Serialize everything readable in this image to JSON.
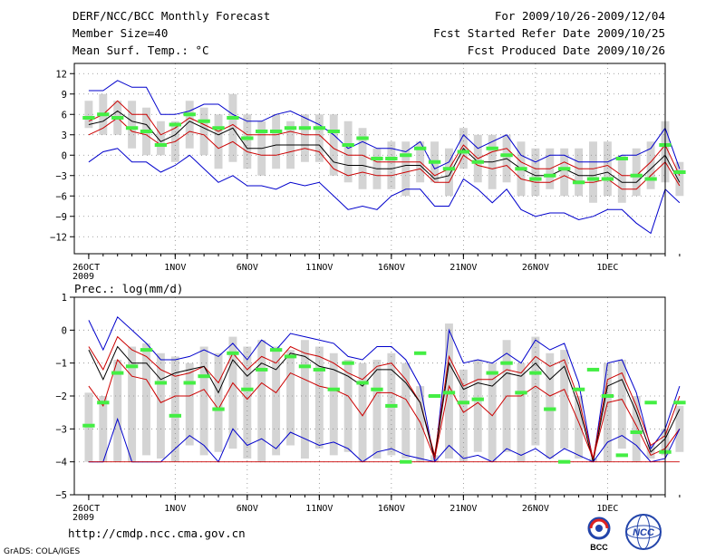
{
  "header": {
    "title": "DERF/NCC/BCC Monthly Forecast",
    "member_size": "Member Size=40",
    "variable": "Mean Surf. Temp.: °C",
    "period": "For 2009/10/26-2009/12/04",
    "refer_date": "Fcst Started Refer Date 2009/10/25",
    "produced_date": "Fcst Produced Date 2009/10/26"
  },
  "footer": {
    "url": "http://cmdp.ncc.cma.gov.cn",
    "credit": "GrADS: COLA/IGES",
    "logo_left": "BCC",
    "logo_right": "NCC"
  },
  "colors": {
    "mean": "#000000",
    "spread": "#cc0000",
    "extreme": "#0000cc",
    "box": "#d4d4d4",
    "climatology": "#44ee44",
    "grid": "#888888"
  },
  "chart_data": [
    {
      "type": "line",
      "title": "Mean Surf. Temp.: °C",
      "ylim": [
        -14.5,
        13.5
      ],
      "yticks": [
        12,
        9,
        6,
        3,
        0,
        -3,
        -6,
        -9,
        -12
      ],
      "xlim": [
        -1,
        40
      ],
      "xticks": [
        {
          "i": 0,
          "label": "26OCT",
          "sub": "2009"
        },
        {
          "i": 6,
          "label": "1NOV"
        },
        {
          "i": 11,
          "label": "6NOV"
        },
        {
          "i": 16,
          "label": "11NOV"
        },
        {
          "i": 21,
          "label": "16NOV"
        },
        {
          "i": 26,
          "label": "21NOV"
        },
        {
          "i": 31,
          "label": "26NOV"
        },
        {
          "i": 36,
          "label": "1DEC"
        }
      ],
      "series": [
        {
          "name": "max",
          "color": "extreme",
          "values": [
            9.5,
            9.5,
            11,
            10,
            10,
            6,
            6,
            6.5,
            7.5,
            7.5,
            6,
            5,
            5,
            6,
            6.5,
            5.5,
            4.5,
            3,
            1,
            2,
            1,
            1,
            0.5,
            2,
            -2,
            -1,
            3,
            1,
            2,
            3,
            0,
            -1,
            0,
            0,
            -1,
            -1,
            -1,
            0,
            0,
            1,
            4,
            -2
          ]
        },
        {
          "name": "upper",
          "color": "spread",
          "values": [
            5,
            6,
            8,
            6,
            6,
            3,
            4,
            5.5,
            4.5,
            3.5,
            4.5,
            3,
            3,
            3,
            3.5,
            3,
            3,
            1,
            0,
            0,
            -1,
            -1,
            -1,
            -1,
            -3,
            -2,
            1.5,
            -0.5,
            0.5,
            1,
            -1,
            -2,
            -2,
            -1,
            -2,
            -2,
            -1.5,
            -3,
            -3,
            -1,
            1.5,
            -3
          ]
        },
        {
          "name": "mean",
          "color": "mean",
          "values": [
            4.5,
            5,
            6.5,
            5,
            4.5,
            2,
            3,
            5,
            4,
            3,
            4,
            1,
            1,
            1.5,
            1.5,
            1.5,
            1.5,
            -1,
            -1.5,
            -1.5,
            -2,
            -2,
            -1.5,
            -1.5,
            -3.5,
            -3,
            1,
            -1,
            -1,
            -0.5,
            -2,
            -3,
            -3,
            -2,
            -3,
            -3,
            -2.5,
            -4,
            -4,
            -2,
            0,
            -4
          ]
        },
        {
          "name": "lower",
          "color": "spread",
          "values": [
            3,
            4,
            5.5,
            3.5,
            3,
            1.5,
            2,
            3.5,
            3,
            1,
            2,
            0.5,
            0,
            0,
            0.5,
            1,
            0.5,
            -2,
            -3,
            -2.5,
            -3,
            -3,
            -2.5,
            -2,
            -4,
            -4,
            0,
            -1.5,
            -2,
            -1.5,
            -3.5,
            -4,
            -4,
            -3,
            -4,
            -4,
            -3.5,
            -5,
            -5,
            -3,
            -1,
            -4.5
          ]
        },
        {
          "name": "min",
          "color": "extreme",
          "values": [
            -1,
            0.5,
            1,
            -1,
            -1,
            -2.5,
            -1.5,
            0,
            -2,
            -4,
            -3,
            -4.5,
            -4.5,
            -5,
            -4,
            -4.5,
            -4,
            -6,
            -8,
            -7.5,
            -8,
            -6,
            -5,
            -5,
            -7.5,
            -7.5,
            -3.5,
            -5,
            -7,
            -5,
            -8,
            -9,
            -8.5,
            -8.5,
            -9.5,
            -9,
            -8,
            -8,
            -10,
            -11.5,
            -5,
            -7
          ]
        }
      ],
      "boxes": [
        [
          4,
          8
        ],
        [
          3,
          9
        ],
        [
          3,
          8
        ],
        [
          1,
          8
        ],
        [
          0,
          7
        ],
        [
          0,
          5
        ],
        [
          -1,
          5
        ],
        [
          1,
          8
        ],
        [
          0,
          7
        ],
        [
          -2,
          6
        ],
        [
          -1,
          9
        ],
        [
          -2,
          6
        ],
        [
          -3,
          5
        ],
        [
          -2,
          6
        ],
        [
          -2,
          5
        ],
        [
          -1,
          6
        ],
        [
          -1,
          6
        ],
        [
          -3,
          6
        ],
        [
          -4,
          5
        ],
        [
          -5,
          4
        ],
        [
          -5,
          1
        ],
        [
          -5,
          2
        ],
        [
          -6,
          2
        ],
        [
          -4,
          2
        ],
        [
          -4,
          2
        ],
        [
          -6,
          1
        ],
        [
          -2,
          4
        ],
        [
          -4,
          3
        ],
        [
          -5,
          3
        ],
        [
          -4,
          3
        ],
        [
          -6,
          2
        ],
        [
          -6,
          1
        ],
        [
          -5,
          1
        ],
        [
          -6,
          1
        ],
        [
          -6,
          1
        ],
        [
          -7,
          2
        ],
        [
          -6,
          2
        ],
        [
          -7,
          0
        ],
        [
          -6,
          1
        ],
        [
          -5,
          2
        ],
        [
          -4,
          5
        ],
        [
          -6,
          -1
        ]
      ],
      "climatology": [
        5.5,
        6,
        5.5,
        4,
        3.5,
        1.5,
        4.5,
        6,
        5,
        4,
        5.5,
        2.5,
        3.5,
        3.5,
        4,
        4,
        4,
        3.5,
        1.5,
        2.5,
        -0.5,
        -0.5,
        0,
        1,
        -1,
        -2,
        0.5,
        -1,
        1,
        0,
        -2,
        -3.5,
        -3,
        -2,
        -4,
        -3.5,
        -3.5,
        -0.5,
        -3,
        -3.5,
        1.5,
        -2.5
      ]
    },
    {
      "type": "line",
      "title": "Prec.: log(mm/d)",
      "ylim": [
        -5,
        1
      ],
      "yticks": [
        1,
        0,
        -1,
        -2,
        -3,
        -4,
        -5
      ],
      "xlim": [
        -1,
        40
      ],
      "xticks": [
        {
          "i": 0,
          "label": "26OCT",
          "sub": "2009"
        },
        {
          "i": 6,
          "label": "1NOV"
        },
        {
          "i": 11,
          "label": "6NOV"
        },
        {
          "i": 16,
          "label": "11NOV"
        },
        {
          "i": 21,
          "label": "16NOV"
        },
        {
          "i": 26,
          "label": "21NOV"
        },
        {
          "i": 31,
          "label": "26NOV"
        },
        {
          "i": 36,
          "label": "1DEC"
        }
      ],
      "series": [
        {
          "name": "max",
          "color": "extreme",
          "values": [
            0.3,
            -0.6,
            0.4,
            0,
            -0.4,
            -0.9,
            -0.9,
            -0.8,
            -0.6,
            -0.8,
            -0.4,
            -0.9,
            -0.3,
            -0.6,
            -0.1,
            -0.2,
            -0.3,
            -0.4,
            -0.8,
            -0.9,
            -0.5,
            -0.5,
            -0.9,
            -1.7,
            -4,
            0,
            -1,
            -0.9,
            -1,
            -0.7,
            -1,
            -0.3,
            -0.6,
            -0.4,
            -1.6,
            -4,
            -1,
            -0.9,
            -1.9,
            -3.6,
            -3,
            -1.7
          ]
        },
        {
          "name": "upper",
          "color": "spread",
          "values": [
            -0.5,
            -1.2,
            -0.2,
            -0.6,
            -0.8,
            -1.2,
            -1.4,
            -1.3,
            -1.1,
            -1.6,
            -0.7,
            -1.2,
            -0.8,
            -1,
            -0.5,
            -0.7,
            -0.8,
            -1,
            -1.3,
            -1.5,
            -1.1,
            -1,
            -1.5,
            -2.2,
            -3.8,
            -0.8,
            -1.7,
            -1.5,
            -1.5,
            -1.2,
            -1.3,
            -0.8,
            -1.1,
            -0.9,
            -2.1,
            -3.9,
            -1.5,
            -1.3,
            -2.3,
            -3.5,
            -3.2,
            -2
          ]
        },
        {
          "name": "mean",
          "color": "mean",
          "values": [
            -0.6,
            -1.5,
            -0.5,
            -1,
            -1,
            -1.5,
            -1.3,
            -1.2,
            -1.1,
            -1.9,
            -0.9,
            -1.4,
            -1,
            -1.2,
            -0.7,
            -0.8,
            -1.1,
            -1.2,
            -1.4,
            -1.7,
            -1.2,
            -1.2,
            -1.6,
            -2.2,
            -3.9,
            -1,
            -1.8,
            -1.6,
            -1.7,
            -1.3,
            -1.4,
            -1,
            -1.5,
            -1.1,
            -2.3,
            -4,
            -1.7,
            -1.5,
            -2.5,
            -3.7,
            -3.3,
            -2.4
          ]
        },
        {
          "name": "lower",
          "color": "spread",
          "values": [
            -1.7,
            -2.3,
            -0.9,
            -1.4,
            -1.5,
            -2.2,
            -2,
            -2,
            -1.8,
            -2.4,
            -1.6,
            -2.1,
            -1.6,
            -1.9,
            -1.3,
            -1.5,
            -1.7,
            -1.8,
            -2,
            -2.6,
            -1.9,
            -1.9,
            -2.1,
            -2.8,
            -3.9,
            -1.7,
            -2.5,
            -2.2,
            -2.6,
            -2,
            -2,
            -1.7,
            -2,
            -1.8,
            -2.8,
            -3.9,
            -2.2,
            -2.1,
            -2.9,
            -3.8,
            -3.6,
            -3
          ]
        },
        {
          "name": "min",
          "color": "extreme",
          "values": [
            -4,
            -4,
            -2.7,
            -4,
            -4,
            -4,
            -3.6,
            -3.2,
            -3.5,
            -4,
            -3,
            -3.5,
            -3.3,
            -3.6,
            -3.1,
            -3.3,
            -3.5,
            -3.4,
            -3.6,
            -4,
            -3.7,
            -3.6,
            -3.8,
            -3.9,
            -4,
            -3.5,
            -3.9,
            -3.8,
            -4,
            -3.6,
            -3.8,
            -3.6,
            -3.9,
            -3.6,
            -3.8,
            -4,
            -3.4,
            -3.2,
            -3.5,
            -4,
            -3.9,
            -3
          ]
        },
        {
          "name": "floor",
          "color": "spread",
          "values": [
            -4,
            -4,
            -4,
            -4,
            -4,
            -4,
            -4,
            -4,
            -4,
            -4,
            -4,
            -4,
            -4,
            -4,
            -4,
            -4,
            -4,
            -4,
            -4,
            -4,
            -4,
            -4,
            -4,
            -4,
            -4,
            -4,
            -4,
            -4,
            -4,
            -4,
            -4,
            -4,
            -4,
            -4,
            -4,
            -4,
            -4,
            -4,
            -4,
            -4,
            -4,
            -4
          ]
        }
      ],
      "boxes": [
        [
          -4,
          -1.9
        ],
        [
          -4,
          -2
        ],
        [
          -4,
          -0.9
        ],
        [
          -4,
          -0.5
        ],
        [
          -3.8,
          -0.4
        ],
        [
          -3.9,
          -0.7
        ],
        [
          -4,
          -0.8
        ],
        [
          -3.5,
          -1
        ],
        [
          -3.8,
          -0.5
        ],
        [
          -3.7,
          -0.7
        ],
        [
          -3.6,
          -0.2
        ],
        [
          -3.9,
          -0.5
        ],
        [
          -4,
          -0.3
        ],
        [
          -3.8,
          -0.5
        ],
        [
          -3.5,
          -0.6
        ],
        [
          -3.9,
          -0.3
        ],
        [
          -3.6,
          -0.5
        ],
        [
          -3.8,
          -0.7
        ],
        [
          -3.7,
          -0.9
        ],
        [
          -4,
          -1
        ],
        [
          -3.9,
          -0.9
        ],
        [
          -3.8,
          -0.7
        ],
        [
          -3.9,
          -1
        ],
        [
          -4,
          -1.7
        ],
        [
          -4,
          -3.8
        ],
        [
          -3.9,
          0.2
        ],
        [
          -4,
          -1.2
        ],
        [
          -3.7,
          -0.9
        ],
        [
          -4,
          -1
        ],
        [
          -3.7,
          -0.3
        ],
        [
          -4,
          -1
        ],
        [
          -3.5,
          -0.2
        ],
        [
          -3.9,
          -0.7
        ],
        [
          -3.6,
          -0.6
        ],
        [
          -3.9,
          -2
        ],
        [
          -4,
          -3.9
        ],
        [
          -4,
          -1
        ],
        [
          -3.6,
          -0.9
        ],
        [
          -4,
          -2
        ],
        [
          -3.9,
          -3.5
        ],
        [
          -3.8,
          -3
        ],
        [
          -3.7,
          -2.3
        ]
      ],
      "climatology": [
        -2.9,
        -2.2,
        -1.3,
        -1.1,
        -0.6,
        -1.6,
        -2.6,
        -1.6,
        -1.4,
        -2.4,
        -0.7,
        -1.8,
        -1.2,
        -0.6,
        -0.8,
        -1.1,
        -1.2,
        -1.8,
        -1,
        -1.6,
        -1.8,
        -2.3,
        -4,
        -0.7,
        -2,
        -1.9,
        -2.2,
        -2.1,
        -1.3,
        -1,
        -1.9,
        -1.3,
        -2.4,
        -4,
        -1.8,
        -1.2,
        -2,
        -3.8,
        -3.1,
        -2.2,
        -3.7,
        -2.2
      ]
    }
  ]
}
